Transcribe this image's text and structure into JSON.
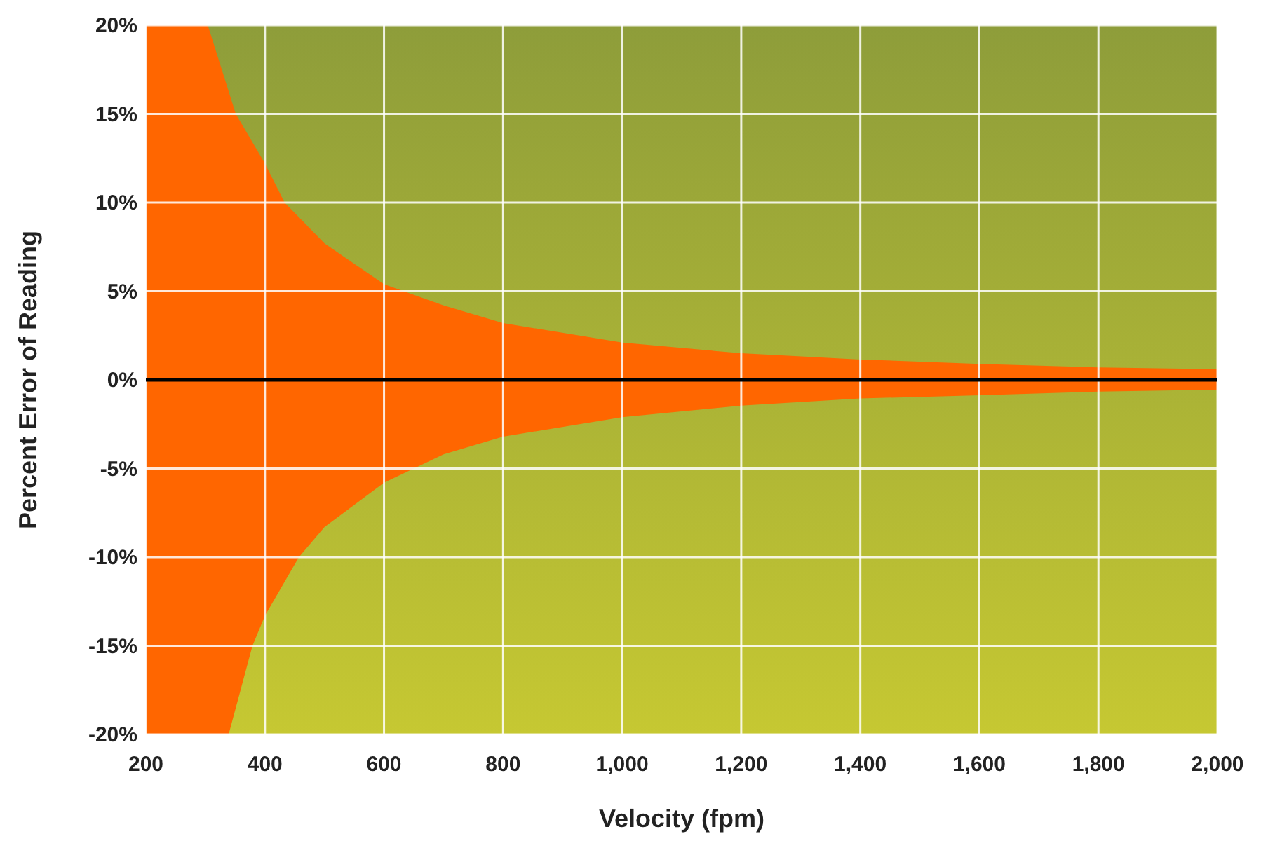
{
  "chart_data": {
    "type": "area",
    "xlabel": "Velocity (fpm)",
    "ylabel": "Percent Error of Reading",
    "xlim": [
      200,
      2000
    ],
    "ylim": [
      -20,
      20
    ],
    "xticks": [
      200,
      400,
      600,
      800,
      {
        "value": 1000,
        "label": "1,000"
      },
      {
        "value": 1200,
        "label": "1,200"
      },
      {
        "value": 1400,
        "label": "1,400"
      },
      {
        "value": 1600,
        "label": "1,600"
      },
      {
        "value": 1800,
        "label": "1,800"
      },
      {
        "value": 2000,
        "label": "2,000"
      }
    ],
    "yticks": [
      {
        "value": -20,
        "label": "-20%"
      },
      {
        "value": -15,
        "label": "-15%"
      },
      {
        "value": -10,
        "label": "-10%"
      },
      {
        "value": -5,
        "label": "-5%"
      },
      {
        "value": 0,
        "label": "0%"
      },
      {
        "value": 5,
        "label": "5%"
      },
      {
        "value": 10,
        "label": "10%"
      },
      {
        "value": 15,
        "label": "15%"
      },
      {
        "value": 20,
        "label": "20%"
      }
    ],
    "grid": true,
    "ref_lines": [
      {
        "axis": "y",
        "value": 0,
        "color": "#000000"
      }
    ],
    "series": [
      {
        "color": "#ff6600",
        "x": [
          200,
          304,
          351,
          400,
          433,
          500,
          600,
          700,
          800,
          1000,
          1200,
          1400,
          1600,
          1800,
          2000
        ],
        "values": [
          20,
          20,
          15,
          12.2,
          10,
          7.7,
          5.4,
          4.2,
          3.2,
          2.1,
          1.5,
          1.15,
          0.9,
          0.7,
          0.6
        ]
      },
      {
        "color": "#ff6600",
        "x": [
          200,
          339,
          379,
          400,
          457,
          500,
          600,
          700,
          800,
          1000,
          1200,
          1400,
          1600,
          1800,
          2000
        ],
        "values": [
          -20,
          -20,
          -15,
          -13.3,
          -10,
          -8.3,
          -5.8,
          -4.2,
          -3.2,
          -2.1,
          -1.45,
          -1.05,
          -0.87,
          -0.66,
          -0.55
        ]
      }
    ]
  }
}
